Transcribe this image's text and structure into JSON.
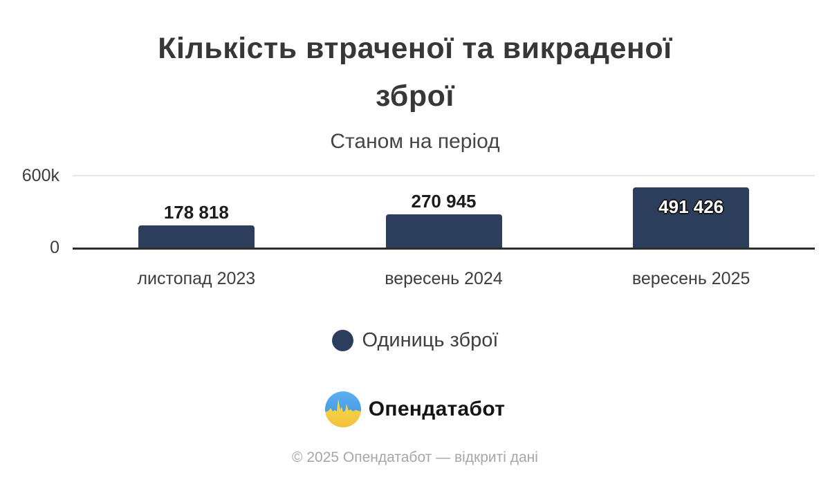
{
  "header": {
    "title_line1": "Кількість втраченої та викраденої",
    "title_line2": "зброї",
    "subtitle": "Станом на період"
  },
  "chart_data": {
    "type": "bar",
    "title": "Кількість втраченої та викраденої зброї",
    "subtitle": "Станом на період",
    "categories": [
      "листопад 2023",
      "вересень 2024",
      "вересень 2025"
    ],
    "values": [
      178818,
      270945,
      491426
    ],
    "value_labels": [
      "178 818",
      "270 945",
      "491 426"
    ],
    "label_inside": [
      false,
      false,
      true
    ],
    "series_name": "Одиниць зброї",
    "bar_color": "#2d3e5c",
    "ylim": [
      0,
      600000
    ],
    "y_ticks": [
      {
        "value": 0,
        "label": "0"
      },
      {
        "value": 600000,
        "label": "600k"
      }
    ],
    "grid": "single horizontal line at 600k",
    "legend_position": "bottom"
  },
  "legend": {
    "items": [
      {
        "label": "Одиниць зброї",
        "color": "#2d3e5c"
      }
    ]
  },
  "branding": {
    "logo_text": "Опендатабот",
    "logo_icon": "opendatabot-pulse-icon",
    "logo_colors": {
      "blue": "#4aa0e8",
      "yellow": "#f6cf45"
    }
  },
  "footer": {
    "copyright": "© 2025 Опендатабот — відкриті дані"
  }
}
